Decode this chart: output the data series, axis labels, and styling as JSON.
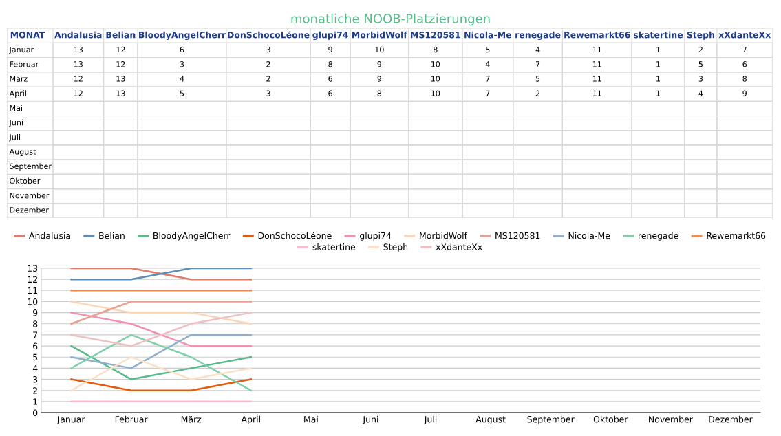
{
  "chart_data": [
    {
      "type": "heatmap",
      "title": "monatliche NOOB-Platzierungen",
      "ylabel": "MONAT",
      "color": "#ffffff",
      "data_labels": true,
      "categories": [
        "Andalusia",
        "Belian",
        "BloodyAngelCherr",
        "DonSchocoLéone",
        "glupi74",
        "MorbidWolf",
        "MS120581",
        "Nicola-Me",
        "renegade",
        "Rewemarkt66",
        "skatertine",
        "Steph",
        "xXdanteXx"
      ],
      "y_categories": [
        "Januar",
        "Februar",
        "März",
        "April",
        "Mai",
        "Juni",
        "Juli",
        "August",
        "September",
        "Oktober",
        "November",
        "Dezember"
      ],
      "cells": [
        [
          13,
          12,
          6,
          3,
          9,
          10,
          8,
          5,
          4,
          11,
          1,
          2,
          7
        ],
        [
          13,
          12,
          3,
          2,
          8,
          9,
          10,
          4,
          7,
          11,
          1,
          5,
          6
        ],
        [
          12,
          13,
          4,
          2,
          6,
          9,
          10,
          7,
          5,
          11,
          1,
          3,
          8
        ],
        [
          12,
          13,
          5,
          3,
          6,
          8,
          10,
          7,
          2,
          11,
          1,
          4,
          9
        ],
        [
          null,
          null,
          null,
          null,
          null,
          null,
          null,
          null,
          null,
          null,
          null,
          null,
          null
        ],
        [
          null,
          null,
          null,
          null,
          null,
          null,
          null,
          null,
          null,
          null,
          null,
          null,
          null
        ],
        [
          null,
          null,
          null,
          null,
          null,
          null,
          null,
          null,
          null,
          null,
          null,
          null,
          null
        ],
        [
          null,
          null,
          null,
          null,
          null,
          null,
          null,
          null,
          null,
          null,
          null,
          null,
          null
        ],
        [
          null,
          null,
          null,
          null,
          null,
          null,
          null,
          null,
          null,
          null,
          null,
          null,
          null
        ],
        [
          null,
          null,
          null,
          null,
          null,
          null,
          null,
          null,
          null,
          null,
          null,
          null,
          null
        ],
        [
          null,
          null,
          null,
          null,
          null,
          null,
          null,
          null,
          null,
          null,
          null,
          null,
          null
        ],
        [
          null,
          null,
          null,
          null,
          null,
          null,
          null,
          null,
          null,
          null,
          null,
          null,
          null
        ]
      ]
    },
    {
      "type": "line",
      "categories": [
        "Januar",
        "Februar",
        "März",
        "April",
        "Mai",
        "Juni",
        "Juli",
        "August",
        "September",
        "Oktober",
        "November",
        "Dezember"
      ],
      "series": [
        {
          "name": "Andalusia",
          "color": "#e07b6a",
          "values": [
            13,
            13,
            12,
            12,
            null,
            null,
            null,
            null,
            null,
            null,
            null,
            null
          ]
        },
        {
          "name": "Belian",
          "color": "#5b8db8",
          "values": [
            12,
            12,
            13,
            13,
            null,
            null,
            null,
            null,
            null,
            null,
            null,
            null
          ]
        },
        {
          "name": "BloodyAngelCherr",
          "color": "#57bb8a",
          "values": [
            6,
            3,
            4,
            5,
            null,
            null,
            null,
            null,
            null,
            null,
            null,
            null
          ]
        },
        {
          "name": "DonSchocoLéone",
          "color": "#e8590c",
          "values": [
            3,
            2,
            2,
            3,
            null,
            null,
            null,
            null,
            null,
            null,
            null,
            null
          ]
        },
        {
          "name": "glupi74",
          "color": "#f48fb1",
          "values": [
            9,
            8,
            6,
            6,
            null,
            null,
            null,
            null,
            null,
            null,
            null,
            null
          ]
        },
        {
          "name": "MorbidWolf",
          "color": "#fcd5b5",
          "values": [
            10,
            9,
            9,
            8,
            null,
            null,
            null,
            null,
            null,
            null,
            null,
            null
          ]
        },
        {
          "name": "MS120581",
          "color": "#e8a090",
          "values": [
            8,
            10,
            10,
            10,
            null,
            null,
            null,
            null,
            null,
            null,
            null,
            null
          ]
        },
        {
          "name": "Nicola-Me",
          "color": "#8fb0cc",
          "values": [
            5,
            4,
            7,
            7,
            null,
            null,
            null,
            null,
            null,
            null,
            null,
            null
          ]
        },
        {
          "name": "renegade",
          "color": "#80cfa9",
          "values": [
            4,
            7,
            5,
            2,
            null,
            null,
            null,
            null,
            null,
            null,
            null,
            null
          ]
        },
        {
          "name": "Rewemarkt66",
          "color": "#f4894b",
          "values": [
            11,
            11,
            11,
            11,
            null,
            null,
            null,
            null,
            null,
            null,
            null,
            null
          ]
        },
        {
          "name": "skatertine",
          "color": "#f8bbd0",
          "values": [
            1,
            1,
            1,
            1,
            null,
            null,
            null,
            null,
            null,
            null,
            null,
            null
          ]
        },
        {
          "name": "Steph",
          "color": "#fde0c5",
          "values": [
            2,
            5,
            3,
            4,
            null,
            null,
            null,
            null,
            null,
            null,
            null,
            null
          ]
        },
        {
          "name": "xXdanteXx",
          "color": "#f0c0c0",
          "values": [
            7,
            6,
            8,
            9,
            null,
            null,
            null,
            null,
            null,
            null,
            null,
            null
          ]
        }
      ],
      "ylim": [
        0,
        13
      ],
      "yticks": [
        0,
        1,
        2,
        3,
        4,
        5,
        6,
        7,
        8,
        9,
        10,
        11,
        12,
        13
      ],
      "grid": "y",
      "legend": "top",
      "marker": "none",
      "line_style": "solid"
    }
  ]
}
